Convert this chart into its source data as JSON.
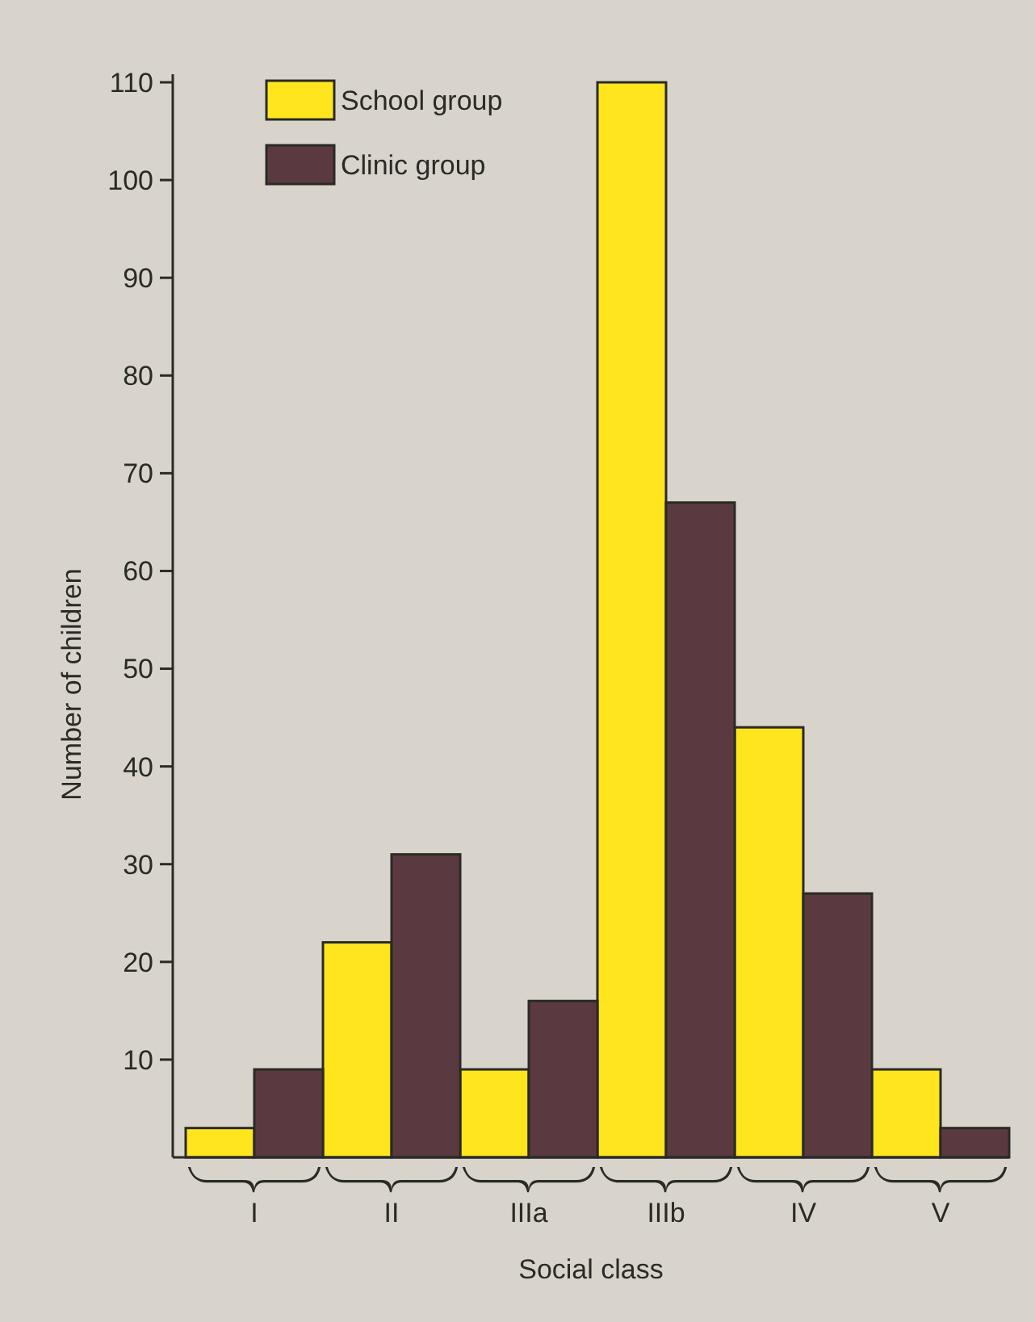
{
  "chart_data": {
    "type": "bar",
    "xlabel": "Social class",
    "ylabel": "Number of children",
    "categories": [
      "I",
      "II",
      "IIIa",
      "IIIb",
      "IV",
      "V"
    ],
    "series": [
      {
        "name": "School group",
        "color": "#ffe51e",
        "values": [
          3,
          22,
          9,
          110,
          44,
          9
        ]
      },
      {
        "name": "Clinic group",
        "color": "#5a3a40",
        "values": [
          9,
          31,
          16,
          67,
          27,
          3
        ]
      }
    ],
    "ylim": [
      0,
      110
    ],
    "yticks": [
      10,
      20,
      30,
      40,
      50,
      60,
      70,
      80,
      90,
      100,
      110
    ],
    "grid": false,
    "legend": "top left"
  }
}
